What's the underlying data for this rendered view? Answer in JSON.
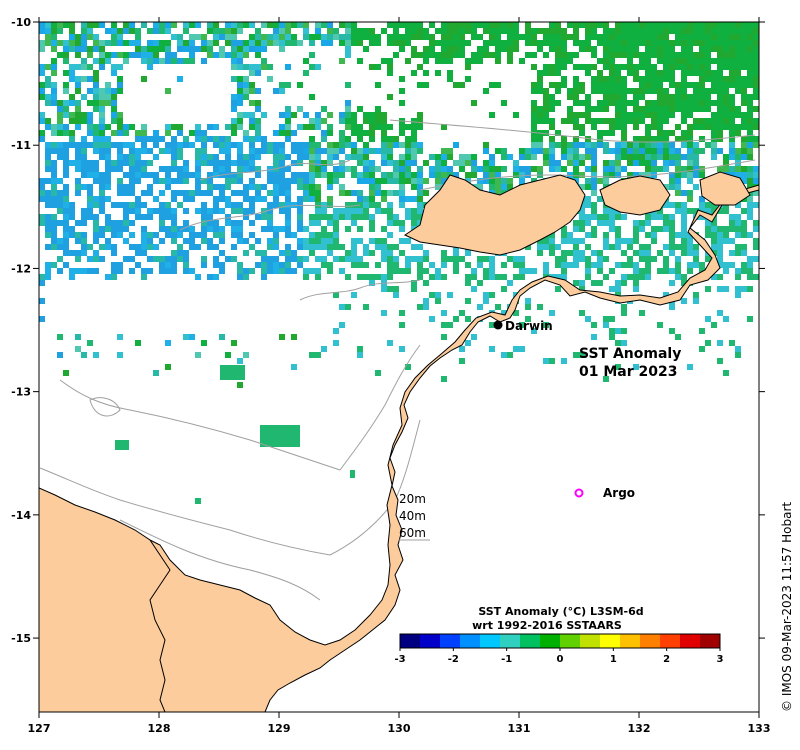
{
  "map": {
    "title_line1": "SST Anomaly",
    "title_line2": "01 Mar 2023",
    "x_ticks": [
      "127",
      "128",
      "129",
      "130",
      "131",
      "132",
      "133"
    ],
    "y_ticks": [
      "-10",
      "-11",
      "-12",
      "-13",
      "-14",
      "-15"
    ],
    "places": [
      {
        "name": "Darwin",
        "lon": 130.84,
        "lat": -12.46
      }
    ],
    "markers": [
      {
        "name": "Argo",
        "lon": 131.5,
        "lat": -13.8,
        "color": "#ff00ff"
      }
    ],
    "depth_legend": [
      "20m",
      "40m",
      "60m"
    ],
    "colorbar": {
      "title_line1": "SST Anomaly (°C) L3SM-6d",
      "title_line2": "wrt 1992-2016 SSTAARS",
      "ticks": [
        "-3",
        "-2",
        "-1",
        "0",
        "1",
        "2",
        "3"
      ],
      "colors": [
        "#000080",
        "#0000c8",
        "#0040ff",
        "#0090ff",
        "#00c8ff",
        "#30d0c0",
        "#00c060",
        "#00b000",
        "#60d000",
        "#c0e000",
        "#ffff00",
        "#ffc000",
        "#ff8000",
        "#ff4000",
        "#e00000",
        "#a00000"
      ]
    },
    "credit": "© IMOS 09-Mar-2023 11:57 Hobart",
    "colors": {
      "land": "#fccc9c",
      "ocean": "#ffffff",
      "contour": "#a0a0a0"
    }
  }
}
